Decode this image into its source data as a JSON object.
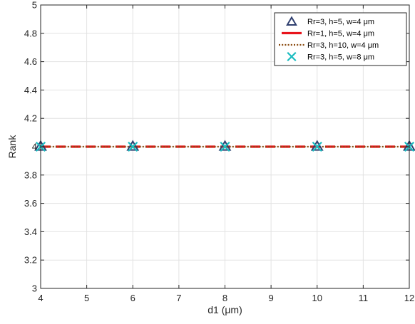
{
  "chart_data": {
    "type": "line",
    "title": "",
    "xlabel": "d1 (μm)",
    "ylabel": "Rank",
    "xlim": [
      4,
      12
    ],
    "ylim": [
      3,
      5
    ],
    "xticks": [
      4,
      5,
      6,
      7,
      8,
      9,
      10,
      11,
      12
    ],
    "yticks": [
      3,
      3.2,
      3.4,
      3.6,
      3.8,
      4,
      4.2,
      4.4,
      4.6,
      4.8,
      5
    ],
    "grid": true,
    "legend_position": "top-right",
    "series": [
      {
        "name": "Rr=3, h=5, w=4 μm",
        "style": "triangle-markers",
        "color": "#2f3f6f",
        "x": [
          4,
          6,
          8,
          10,
          12
        ],
        "y": [
          4,
          4,
          4,
          4,
          4
        ]
      },
      {
        "name": "Rr=1, h=5, w=4 μm",
        "style": "thick-dashed-line",
        "color": "#e8141c",
        "x": [
          4,
          6,
          8,
          10,
          12
        ],
        "y": [
          4,
          4,
          4,
          4,
          4
        ]
      },
      {
        "name": "Rr=3, h=10, w=4 μm",
        "style": "dotted-line",
        "color": "#8a4b10",
        "x": [
          4,
          6,
          8,
          10,
          12
        ],
        "y": [
          4,
          4,
          4,
          4,
          4
        ]
      },
      {
        "name": "Rr=3, h=5, w=8 μm",
        "style": "x-markers",
        "color": "#1bbcc0",
        "x": [
          4,
          6,
          8,
          10,
          12
        ],
        "y": [
          4,
          4,
          4,
          4,
          4
        ]
      }
    ]
  }
}
